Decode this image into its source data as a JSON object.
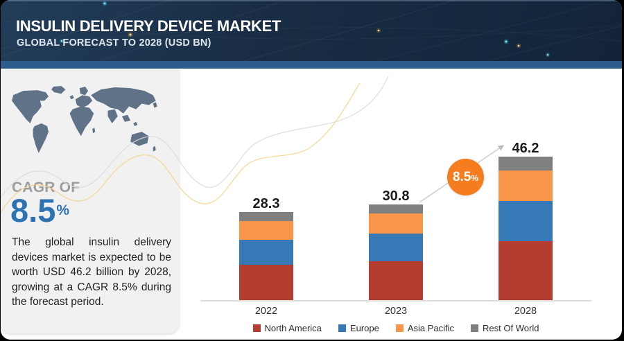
{
  "header": {
    "title": "INSULIN DELIVERY DEVICE MARKET",
    "subtitle": "GLOBAL FORECAST TO 2028 (USD BN)"
  },
  "sidebar": {
    "cagr_label": "CAGR OF",
    "cagr_value": "8.5",
    "cagr_unit": "%",
    "description": "The global insulin delivery devices market is expected to be worth USD 46.2 billion by 2028, growing at a CAGR 8.5% during the forecast period."
  },
  "annotation_badge": {
    "value": "8.5",
    "unit": "%"
  },
  "chart_data": {
    "type": "bar",
    "stacked": true,
    "categories": [
      "2022",
      "2023",
      "2028"
    ],
    "series": [
      {
        "name": "North America",
        "color": "#b43c31",
        "values": [
          11.5,
          12.5,
          19.0
        ]
      },
      {
        "name": "Europe",
        "color": "#3779b7",
        "values": [
          7.9,
          8.9,
          13.0
        ]
      },
      {
        "name": "Asia Pacific",
        "color": "#f9964a",
        "values": [
          6.0,
          6.5,
          9.9
        ]
      },
      {
        "name": "Rest Of World",
        "color": "#7f7f7f",
        "values": [
          2.9,
          2.9,
          4.3
        ]
      }
    ],
    "totals": [
      28.3,
      30.8,
      46.2
    ],
    "unit": "USD BN",
    "title": "",
    "xlabel": "",
    "ylabel": "",
    "grid": false,
    "legend_position": "bottom",
    "annotation": "8.5%"
  },
  "colors": {
    "header_bg": "#16293d",
    "header_band": "#2d5e8b",
    "cagr_blue": "#2d73b4",
    "badge_orange": "#f57d1f",
    "panel_bg": "#f1f1f2",
    "map_fill": "#5f7288",
    "axis_line": "#dcdcdc",
    "arrow": "#cccccc"
  }
}
